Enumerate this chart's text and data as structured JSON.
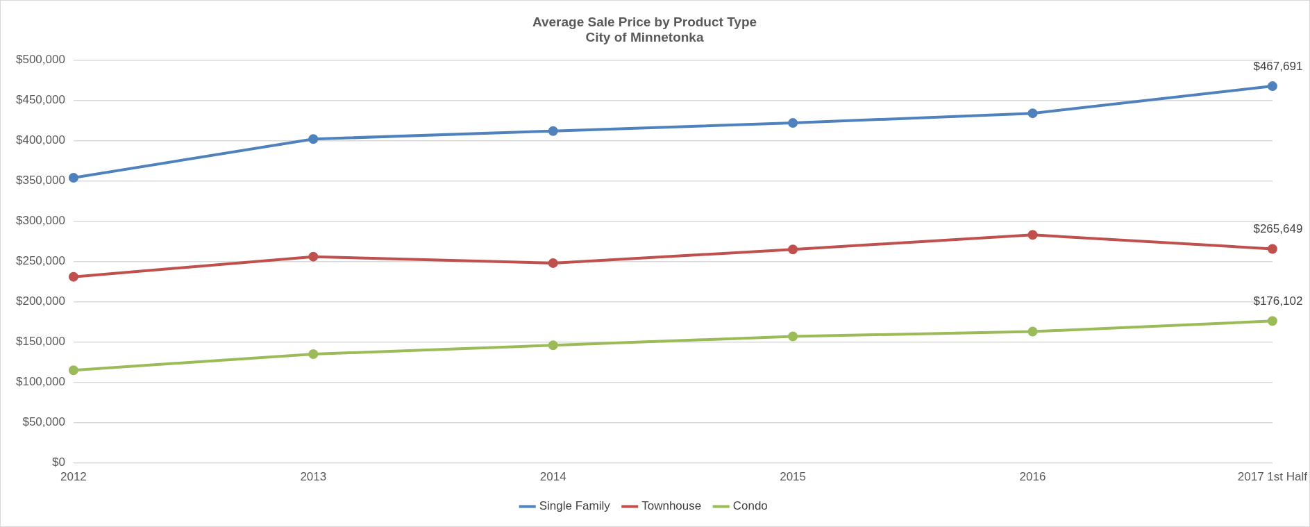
{
  "chart_data": {
    "type": "line",
    "title": "Average Sale Price by Product Type",
    "subtitle": "City of Minnetonka",
    "categories": [
      "2012",
      "2013",
      "2014",
      "2015",
      "2016",
      "2017 1st Half"
    ],
    "series": [
      {
        "name": "Single Family",
        "color": "#4f81bd",
        "values": [
          354000,
          402000,
          412000,
          422000,
          434000,
          467691
        ],
        "value_labels": [
          null,
          null,
          null,
          null,
          null,
          "$467,691"
        ]
      },
      {
        "name": "Townhouse",
        "color": "#c0504d",
        "values": [
          231000,
          256000,
          248000,
          265000,
          283000,
          265649
        ],
        "value_labels": [
          null,
          null,
          null,
          null,
          null,
          "$265,649"
        ]
      },
      {
        "name": "Condo",
        "color": "#9bbb59",
        "values": [
          115000,
          135000,
          146000,
          157000,
          163000,
          176102
        ],
        "value_labels": [
          null,
          null,
          null,
          null,
          null,
          "$176,102"
        ]
      }
    ],
    "ylim": [
      0,
      500000
    ],
    "yticks": [
      {
        "value": 0,
        "label": "$0"
      },
      {
        "value": 50000,
        "label": "$50,000"
      },
      {
        "value": 100000,
        "label": "$100,000"
      },
      {
        "value": 150000,
        "label": "$150,000"
      },
      {
        "value": 200000,
        "label": "$200,000"
      },
      {
        "value": 250000,
        "label": "$250,000"
      },
      {
        "value": 300000,
        "label": "$300,000"
      },
      {
        "value": 350000,
        "label": "$350,000"
      },
      {
        "value": 400000,
        "label": "$400,000"
      },
      {
        "value": 450000,
        "label": "$450,000"
      },
      {
        "value": 500000,
        "label": "$500,000"
      }
    ],
    "grid": "y",
    "legend": "bottom",
    "marker": "circle",
    "line_style": "solid"
  }
}
